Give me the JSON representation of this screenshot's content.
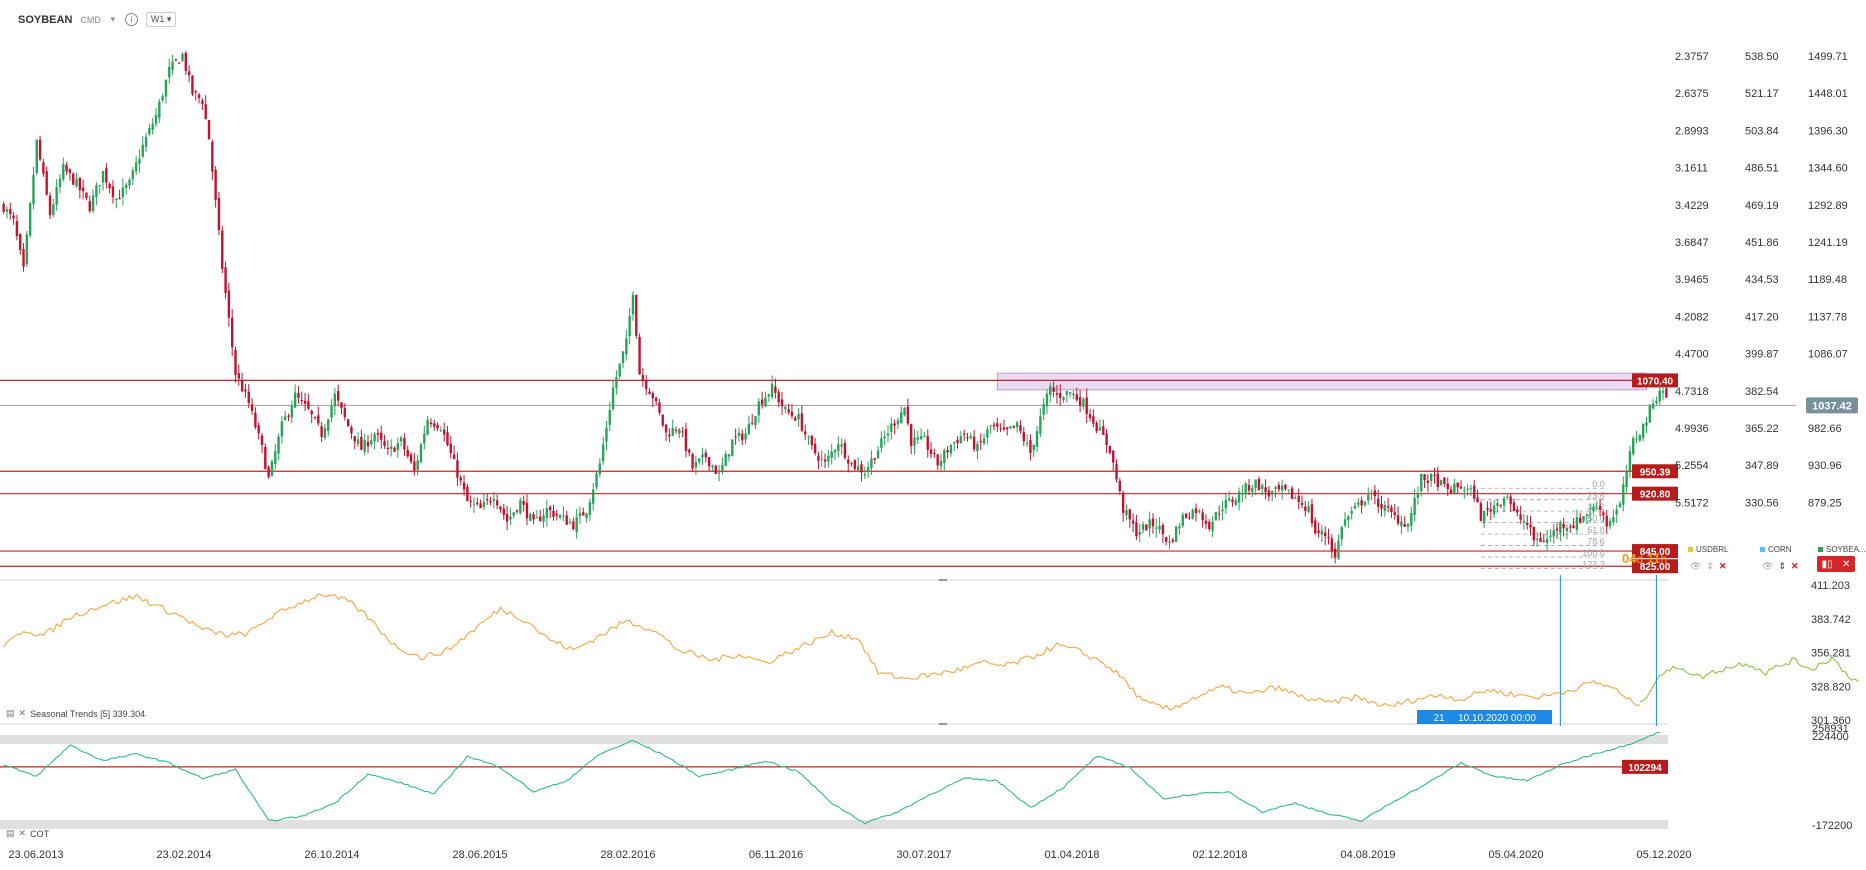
{
  "header": {
    "symbol": "SOYBEAN",
    "type_tag": "CMD",
    "timeframe": "W1",
    "info_icon": "info-icon",
    "caret_icon": "chevron-down-icon"
  },
  "timer": {
    "days": "04",
    "d_unit": "d",
    "hours": "11",
    "h_unit": "h"
  },
  "panels": {
    "seasonal_label": "Seasonal  Trends  [5]  339.304",
    "cot_label": "COT"
  },
  "legend": [
    {
      "name": "USDBRL",
      "color": "#f5c242"
    },
    {
      "name": "CORN",
      "color": "#4fc3f7"
    },
    {
      "name": "SOYBEA...",
      "color": "#2e9d5a"
    }
  ],
  "crosshair": {
    "value": "21",
    "date": "10.10.2020 00:00"
  },
  "colors": {
    "up": "#27a35a",
    "down": "#c8102e",
    "level_line": "#cc2222",
    "seasonal_hist": "#f5a742",
    "seasonal_fcst": "#8dc63f",
    "cot_line": "#2dbd8a",
    "zone_fill": "#e6d5ef",
    "crosshair_bg": "#1e88e5"
  },
  "chart_data": [
    {
      "type": "candlestick",
      "title": "SOYBEAN",
      "x_ticks": [
        "23.06.2013",
        "23.02.2014",
        "26.10.2014",
        "28.06.2015",
        "28.02.2016",
        "06.11.2016",
        "30.07.2017",
        "01.04.2018",
        "02.12.2018",
        "04.08.2019",
        "05.04.2020",
        "05.12.2020"
      ],
      "ylim": [
        820,
        1520
      ],
      "right_axis_1": [
        "2.3757",
        "2.6375",
        "2.8993",
        "3.1611",
        "3.4229",
        "3.6847",
        "3.9465",
        "4.2082",
        "4.4700",
        "4.7318",
        "4.9936",
        "5.2554",
        "5.5172"
      ],
      "right_axis_2": [
        "538.50",
        "521.17",
        "503.84",
        "486.51",
        "469.19",
        "451.86",
        "434.53",
        "417.20",
        "399.87",
        "382.54",
        "365.22",
        "347.89",
        "330.56"
      ],
      "right_axis_3": [
        "1499.71",
        "1448.01",
        "1396.30",
        "1344.60",
        "1292.89",
        "1241.19",
        "1189.48",
        "1137.78",
        "1086.07",
        "1037.42",
        "982.66",
        "930.96",
        "879.25"
      ],
      "price_anchors": [
        [
          0,
          1300
        ],
        [
          3,
          1280
        ],
        [
          6,
          1215
        ],
        [
          10,
          1385
        ],
        [
          14,
          1290
        ],
        [
          18,
          1350
        ],
        [
          22,
          1330
        ],
        [
          26,
          1300
        ],
        [
          30,
          1345
        ],
        [
          34,
          1310
        ],
        [
          38,
          1330
        ],
        [
          42,
          1380
        ],
        [
          46,
          1420
        ],
        [
          50,
          1480
        ],
        [
          54,
          1500
        ],
        [
          57,
          1450
        ],
        [
          60,
          1440
        ],
        [
          62,
          1390
        ],
        [
          66,
          1220
        ],
        [
          70,
          1080
        ],
        [
          74,
          1040
        ],
        [
          78,
          980
        ],
        [
          80,
          940
        ],
        [
          84,
          1010
        ],
        [
          88,
          1050
        ],
        [
          92,
          1030
        ],
        [
          96,
          1000
        ],
        [
          100,
          1050
        ],
        [
          104,
          1010
        ],
        [
          108,
          980
        ],
        [
          112,
          1000
        ],
        [
          116,
          975
        ],
        [
          120,
          990
        ],
        [
          124,
          950
        ],
        [
          128,
          1020
        ],
        [
          132,
          1010
        ],
        [
          136,
          960
        ],
        [
          140,
          910
        ],
        [
          144,
          900
        ],
        [
          148,
          920
        ],
        [
          152,
          885
        ],
        [
          156,
          910
        ],
        [
          160,
          880
        ],
        [
          164,
          900
        ],
        [
          168,
          890
        ],
        [
          172,
          880
        ],
        [
          176,
          900
        ],
        [
          180,
          960
        ],
        [
          184,
          1060
        ],
        [
          188,
          1120
        ],
        [
          190,
          1190
        ],
        [
          192,
          1080
        ],
        [
          196,
          1050
        ],
        [
          200,
          1000
        ],
        [
          204,
          1010
        ],
        [
          208,
          955
        ],
        [
          212,
          970
        ],
        [
          216,
          945
        ],
        [
          220,
          990
        ],
        [
          224,
          1000
        ],
        [
          228,
          1040
        ],
        [
          232,
          1060
        ],
        [
          236,
          1030
        ],
        [
          240,
          1020
        ],
        [
          244,
          980
        ],
        [
          248,
          960
        ],
        [
          252,
          990
        ],
        [
          256,
          960
        ],
        [
          260,
          950
        ],
        [
          264,
          980
        ],
        [
          268,
          1010
        ],
        [
          272,
          1035
        ],
        [
          274,
          990
        ],
        [
          278,
          990
        ],
        [
          282,
          960
        ],
        [
          286,
          985
        ],
        [
          290,
          1000
        ],
        [
          294,
          980
        ],
        [
          298,
          1010
        ],
        [
          302,
          1000
        ],
        [
          306,
          1010
        ],
        [
          310,
          975
        ],
        [
          314,
          1035
        ],
        [
          316,
          1060
        ],
        [
          318,
          1050
        ],
        [
          322,
          1055
        ],
        [
          326,
          1040
        ],
        [
          330,
          1010
        ],
        [
          334,
          980
        ],
        [
          338,
          900
        ],
        [
          342,
          870
        ],
        [
          346,
          880
        ],
        [
          348,
          880
        ],
        [
          352,
          855
        ],
        [
          356,
          890
        ],
        [
          360,
          900
        ],
        [
          364,
          880
        ],
        [
          368,
          905
        ],
        [
          372,
          915
        ],
        [
          374,
          925
        ],
        [
          378,
          935
        ],
        [
          382,
          920
        ],
        [
          386,
          925
        ],
        [
          390,
          915
        ],
        [
          394,
          900
        ],
        [
          396,
          870
        ],
        [
          400,
          865
        ],
        [
          402,
          835
        ],
        [
          404,
          880
        ],
        [
          408,
          900
        ],
        [
          412,
          920
        ],
        [
          416,
          905
        ],
        [
          420,
          890
        ],
        [
          424,
          880
        ],
        [
          428,
          940
        ],
        [
          432,
          940
        ],
        [
          436,
          925
        ],
        [
          440,
          930
        ],
        [
          444,
          920
        ],
        [
          446,
          890
        ],
        [
          450,
          905
        ],
        [
          454,
          920
        ],
        [
          456,
          895
        ],
        [
          460,
          880
        ],
        [
          462,
          860
        ],
        [
          466,
          860
        ],
        [
          470,
          880
        ],
        [
          474,
          880
        ],
        [
          478,
          895
        ],
        [
          482,
          905
        ],
        [
          484,
          880
        ],
        [
          488,
          905
        ],
        [
          490,
          950
        ],
        [
          492,
          990
        ],
        [
          495,
          1010
        ],
        [
          498,
          1040
        ],
        [
          500,
          1060
        ],
        [
          502,
          1050
        ]
      ],
      "levels": [
        {
          "value": 1070.4,
          "label": "1070.40"
        },
        {
          "value": 950.39,
          "label": "950.39"
        },
        {
          "value": 920.8,
          "label": "920.80"
        },
        {
          "value": 845.0,
          "label": "845.00"
        },
        {
          "value": 825.0,
          "label": "825.00"
        }
      ],
      "current_price": {
        "value": 1037.42,
        "label": "1037.42"
      },
      "resistance_zone": {
        "from": 1058,
        "to": 1080
      },
      "fibonacci": [
        "0.0",
        "23.6",
        "38.2",
        "50.0",
        "61.8",
        "78.6",
        "100.0",
        "127.3"
      ]
    },
    {
      "type": "line",
      "title": "Seasonal Trends [5]",
      "ylim": [
        301.36,
        411.203
      ],
      "y_ticks": [
        "411.203",
        "383.742",
        "356.281",
        "328.820",
        "301.360"
      ],
      "series": [
        {
          "role": "history",
          "anchors": [
            [
              0,
              360
            ],
            [
              6,
              375
            ],
            [
              12,
              370
            ],
            [
              20,
              385
            ],
            [
              30,
              395
            ],
            [
              40,
              402
            ],
            [
              48,
              392
            ],
            [
              54,
              385
            ],
            [
              60,
              375
            ],
            [
              68,
              370
            ],
            [
              74,
              372
            ],
            [
              80,
              384
            ],
            [
              88,
              395
            ],
            [
              96,
              404
            ],
            [
              104,
              398
            ],
            [
              110,
              385
            ],
            [
              118,
              362
            ],
            [
              126,
              352
            ],
            [
              134,
              358
            ],
            [
              142,
              375
            ],
            [
              150,
              392
            ],
            [
              158,
              382
            ],
            [
              164,
              368
            ],
            [
              172,
              358
            ],
            [
              180,
              370
            ],
            [
              188,
              382
            ],
            [
              196,
              375
            ],
            [
              204,
              358
            ],
            [
              214,
              350
            ],
            [
              222,
              355
            ],
            [
              230,
              348
            ],
            [
              240,
              360
            ],
            [
              250,
              372
            ],
            [
              258,
              368
            ],
            [
              264,
              340
            ],
            [
              272,
              335
            ],
            [
              280,
              338
            ],
            [
              288,
              342
            ],
            [
              296,
              348
            ],
            [
              302,
              345
            ],
            [
              310,
              352
            ],
            [
              318,
              362
            ],
            [
              324,
              358
            ],
            [
              332,
              348
            ],
            [
              338,
              335
            ],
            [
              344,
              316
            ],
            [
              352,
              310
            ],
            [
              360,
              320
            ],
            [
              368,
              328
            ],
            [
              376,
              322
            ],
            [
              384,
              328
            ],
            [
              392,
              320
            ],
            [
              400,
              315
            ],
            [
              408,
              320
            ],
            [
              418,
              312
            ],
            [
              426,
              318
            ],
            [
              434,
              322
            ],
            [
              440,
              318
            ],
            [
              448,
              326
            ],
            [
              456,
              322
            ],
            [
              464,
              320
            ],
            [
              472,
              325
            ],
            [
              480,
              332
            ],
            [
              486,
              328
            ],
            [
              490,
              318
            ],
            [
              494,
              314
            ]
          ]
        },
        {
          "role": "forecast",
          "anchors": [
            [
              494,
              314
            ],
            [
              500,
              338
            ],
            [
              506,
              345
            ],
            [
              512,
              336
            ],
            [
              518,
              342
            ],
            [
              526,
              348
            ],
            [
              532,
              340
            ],
            [
              540,
              350
            ],
            [
              546,
              343
            ],
            [
              552,
              352
            ],
            [
              556,
              340
            ],
            [
              560,
              332
            ]
          ]
        }
      ]
    },
    {
      "type": "line",
      "title": "COT",
      "ylim": [
        -172200,
        258931
      ],
      "y_ticks": [
        "258931",
        "224400",
        "-172200"
      ],
      "level": {
        "value": 102294,
        "label": "102294"
      },
      "anchors": [
        [
          0,
          110000
        ],
        [
          10,
          60000
        ],
        [
          20,
          200000
        ],
        [
          30,
          130000
        ],
        [
          40,
          160000
        ],
        [
          50,
          120000
        ],
        [
          60,
          50000
        ],
        [
          70,
          90000
        ],
        [
          80,
          -140000
        ],
        [
          90,
          -120000
        ],
        [
          100,
          -60000
        ],
        [
          110,
          70000
        ],
        [
          120,
          30000
        ],
        [
          130,
          -20000
        ],
        [
          140,
          150000
        ],
        [
          150,
          100000
        ],
        [
          160,
          -10000
        ],
        [
          170,
          40000
        ],
        [
          180,
          160000
        ],
        [
          190,
          220000
        ],
        [
          200,
          150000
        ],
        [
          210,
          60000
        ],
        [
          220,
          90000
        ],
        [
          230,
          130000
        ],
        [
          240,
          80000
        ],
        [
          250,
          -60000
        ],
        [
          260,
          -150000
        ],
        [
          270,
          -100000
        ],
        [
          280,
          -20000
        ],
        [
          290,
          50000
        ],
        [
          300,
          40000
        ],
        [
          310,
          -80000
        ],
        [
          320,
          10000
        ],
        [
          330,
          150000
        ],
        [
          340,
          100000
        ],
        [
          350,
          -40000
        ],
        [
          360,
          -20000
        ],
        [
          370,
          -10000
        ],
        [
          380,
          -100000
        ],
        [
          390,
          -60000
        ],
        [
          400,
          -110000
        ],
        [
          410,
          -140000
        ],
        [
          420,
          -50000
        ],
        [
          430,
          30000
        ],
        [
          440,
          120000
        ],
        [
          450,
          60000
        ],
        [
          460,
          40000
        ],
        [
          470,
          110000
        ],
        [
          480,
          160000
        ],
        [
          490,
          200000
        ],
        [
          500,
          258931
        ]
      ]
    }
  ]
}
